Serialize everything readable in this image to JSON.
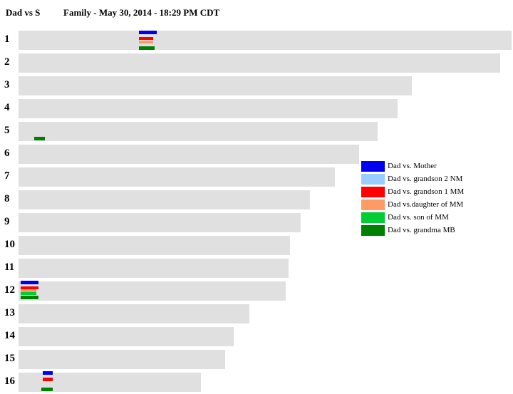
{
  "header": {
    "title": "Dad vs S",
    "subtitle": "Family - May 30, 2014 - 18:29 PM CDT"
  },
  "chromosomes": [
    "1",
    "2",
    "3",
    "4",
    "5",
    "6",
    "7",
    "8",
    "9",
    "10",
    "11",
    "12",
    "13",
    "14",
    "15",
    "16"
  ],
  "legend": [
    {
      "label": "Dad vs. Mother",
      "color": "#0000ee"
    },
    {
      "label": "Dad vs. grandson 2 NM",
      "color": "#99ccff"
    },
    {
      "label": "Dad vs. grandson 1 MM",
      "color": "#ff0000"
    },
    {
      "label": "Dad vs.daughter of MM",
      "color": "#ff9966"
    },
    {
      "label": "Dad vs. son of MM",
      "color": "#00cc33"
    },
    {
      "label": "Dad vs. grandma MB",
      "color": "#008000"
    }
  ]
}
